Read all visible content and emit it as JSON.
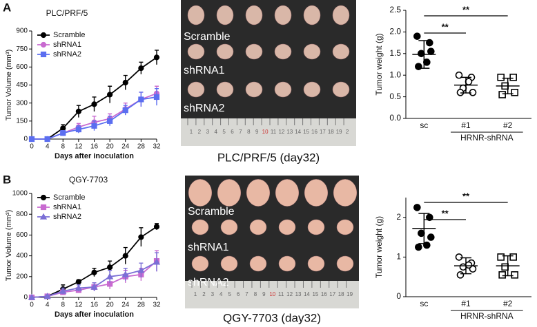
{
  "panel_labels": [
    "A",
    "B"
  ],
  "photos": [
    {
      "row_labels": [
        "Scramble",
        "shRNA1",
        "shRNA2"
      ],
      "caption": "PLC/PRF/5 (day32)",
      "ruler": [
        "1",
        "2",
        "3",
        "4",
        "5",
        "6",
        "7",
        "8",
        "9",
        "10",
        "11",
        "12",
        "13",
        "14",
        "15",
        "16",
        "17",
        "18",
        "19",
        "2"
      ]
    },
    {
      "row_labels": [
        "Scramble",
        "shRNA1",
        "shRNA2"
      ],
      "caption": "QGY-7703 (day32)",
      "ruler": [
        "1",
        "2",
        "3",
        "4",
        "5",
        "6",
        "7",
        "8",
        "9",
        "10",
        "11",
        "12",
        "13",
        "14",
        "15",
        "16",
        "17",
        "18",
        "19"
      ]
    }
  ],
  "chart_data": [
    {
      "type": "line",
      "title": "PLC/PRF/5",
      "x_label": "Days after inoculation",
      "y_label": "Tumor Volume (mm³)",
      "x": [
        0,
        4,
        8,
        12,
        16,
        20,
        24,
        28,
        32
      ],
      "xlim": [
        0,
        32
      ],
      "xticks": [
        0,
        4,
        8,
        12,
        16,
        20,
        24,
        28,
        32
      ],
      "ylim": [
        0,
        900
      ],
      "yticks": [
        0,
        150,
        300,
        450,
        600,
        750,
        900
      ],
      "legend": "upper left",
      "series": [
        {
          "name": "Scramble",
          "color": "#000000",
          "marker": "circle",
          "values": [
            0,
            0,
            90,
            230,
            290,
            370,
            470,
            590,
            680
          ],
          "errors": [
            0,
            0,
            30,
            50,
            60,
            70,
            60,
            50,
            60
          ]
        },
        {
          "name": "shRNA1",
          "color": "#c86ad0",
          "marker": "circle",
          "values": [
            0,
            0,
            50,
            100,
            140,
            170,
            250,
            330,
            380
          ],
          "errors": [
            0,
            0,
            20,
            30,
            50,
            40,
            50,
            60,
            60
          ]
        },
        {
          "name": "shRNA2",
          "color": "#5b6ef0",
          "marker": "square",
          "values": [
            0,
            0,
            50,
            80,
            110,
            150,
            240,
            330,
            350
          ],
          "errors": [
            0,
            0,
            20,
            30,
            40,
            40,
            40,
            60,
            70
          ]
        }
      ]
    },
    {
      "type": "dotplot",
      "y_label": "Tumor weight (g)",
      "categories": [
        "sc",
        "#1",
        "#2"
      ],
      "group_label": "HRNR-shRNA",
      "ylim": [
        0,
        2.5
      ],
      "yticks": [
        {
          "value": 0,
          "label": "0.0"
        },
        0.5,
        {
          "value": 1,
          "label": "1.0"
        },
        1.5,
        {
          "value": 2,
          "label": "2.0"
        },
        2.5
      ],
      "markers": [
        "filled-circle",
        "open-circle",
        "open-square"
      ],
      "points": [
        [
          1.9,
          1.75,
          1.5,
          1.55,
          1.2,
          1.3
        ],
        [
          1.0,
          0.95,
          0.7,
          0.6,
          0.6,
          0.85
        ],
        [
          0.95,
          0.95,
          0.75,
          0.6,
          0.55
        ]
      ],
      "means": [
        1.48,
        0.77,
        0.75
      ],
      "sds": [
        0.32,
        0.18,
        0.18
      ],
      "annotations": [
        "**",
        "**"
      ]
    },
    {
      "type": "line",
      "title": "QGY-7703",
      "x_label": "Days after inoculation",
      "y_label": "Tumor Volume (mm³)",
      "x": [
        0,
        4,
        8,
        12,
        16,
        20,
        24,
        28,
        32
      ],
      "xlim": [
        0,
        32
      ],
      "xticks": [
        0,
        4,
        8,
        12,
        16,
        20,
        24,
        28,
        32
      ],
      "ylim": [
        0,
        1000
      ],
      "yticks": [
        0,
        200,
        400,
        600,
        800,
        1000
      ],
      "legend": "upper left",
      "series": [
        {
          "name": "Scramble",
          "color": "#000000",
          "marker": "circle",
          "values": [
            0,
            10,
            80,
            150,
            240,
            290,
            400,
            580,
            680
          ],
          "errors": [
            0,
            10,
            40,
            20,
            40,
            60,
            80,
            90,
            30
          ]
        },
        {
          "name": "shRNA1",
          "color": "#c86ad0",
          "marker": "square",
          "values": [
            0,
            10,
            50,
            70,
            100,
            130,
            200,
            220,
            350
          ],
          "errors": [
            0,
            10,
            20,
            20,
            40,
            50,
            60,
            60,
            100
          ]
        },
        {
          "name": "shRNA2",
          "color": "#7b6fd6",
          "marker": "triangle",
          "values": [
            0,
            10,
            60,
            90,
            100,
            200,
            220,
            260,
            340
          ],
          "errors": [
            0,
            10,
            30,
            30,
            40,
            60,
            60,
            70,
            90
          ]
        }
      ]
    },
    {
      "type": "dotplot",
      "y_label": "Tumor weight (g)",
      "categories": [
        "sc",
        "#1",
        "#2"
      ],
      "group_label": "HRNR-shRNA",
      "ylim": [
        0,
        2.5
      ],
      "yticks": [
        0,
        1,
        2
      ],
      "markers": [
        "filled-circle",
        "open-circle",
        "open-square"
      ],
      "points": [
        [
          2.25,
          2.0,
          1.6,
          1.5,
          1.25,
          1.3
        ],
        [
          1.0,
          0.85,
          0.75,
          0.7,
          0.55,
          0.8
        ],
        [
          1.0,
          1.0,
          0.75,
          0.55,
          0.55
        ]
      ],
      "means": [
        1.72,
        0.78,
        0.78
      ],
      "sds": [
        0.38,
        0.2,
        0.25
      ],
      "annotations": [
        "**",
        "**"
      ]
    }
  ]
}
